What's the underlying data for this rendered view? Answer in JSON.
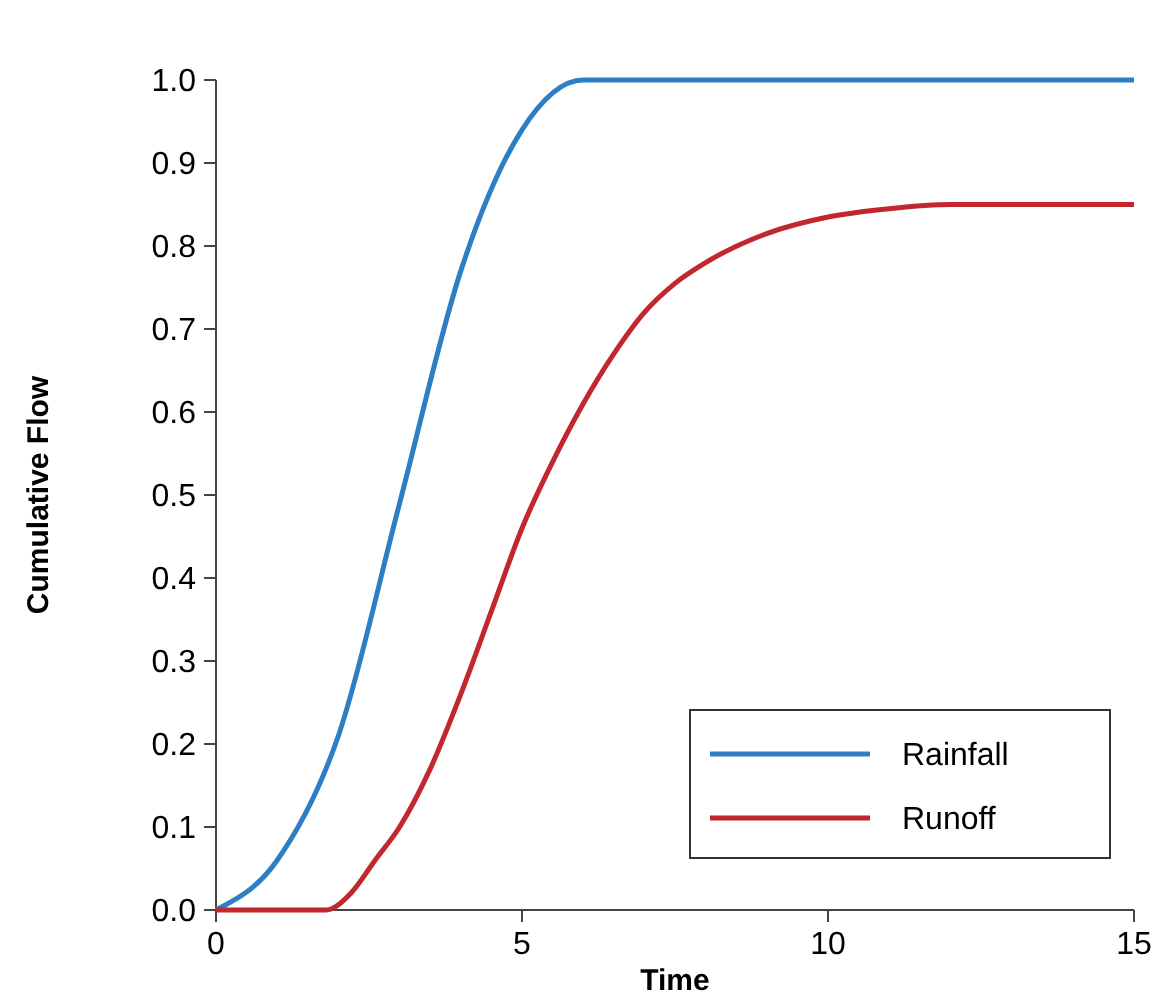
{
  "chart_data": {
    "type": "line",
    "xlabel": "Time",
    "ylabel": "Cumulative Flow",
    "xlim": [
      0,
      15
    ],
    "xticks": [
      0,
      5,
      10,
      15
    ],
    "ylim": [
      0,
      1
    ],
    "yticks": [
      {
        "value": 0,
        "label": "0.0"
      },
      0.1,
      0.2,
      0.3,
      0.4,
      0.5,
      0.6,
      0.7,
      0.8,
      0.9,
      {
        "value": 1,
        "label": "1.0"
      }
    ],
    "grid": false,
    "legend": "bottom right",
    "marker": "none",
    "line_style": "solid",
    "series": [
      {
        "name": "Rainfall",
        "color": "#2e7ec3",
        "x": [
          0,
          1,
          2,
          3,
          4,
          5,
          6,
          15
        ],
        "values": [
          0,
          0.06,
          0.21,
          0.49,
          0.77,
          0.94,
          1,
          1
        ]
      },
      {
        "name": "Runoff",
        "color": "#c1272d",
        "x": [
          0,
          1,
          1.8,
          2.2,
          2.6,
          3,
          3.5,
          4,
          4.5,
          5,
          5.5,
          6,
          6.5,
          7,
          7.5,
          8,
          9,
          10,
          11,
          12,
          13,
          15
        ],
        "values": [
          0,
          0,
          0,
          0.02,
          0.06,
          0.1,
          0.17,
          0.26,
          0.36,
          0.46,
          0.54,
          0.61,
          0.67,
          0.72,
          0.755,
          0.78,
          0.815,
          0.835,
          0.845,
          0.85,
          0.85,
          0.85
        ]
      }
    ]
  }
}
